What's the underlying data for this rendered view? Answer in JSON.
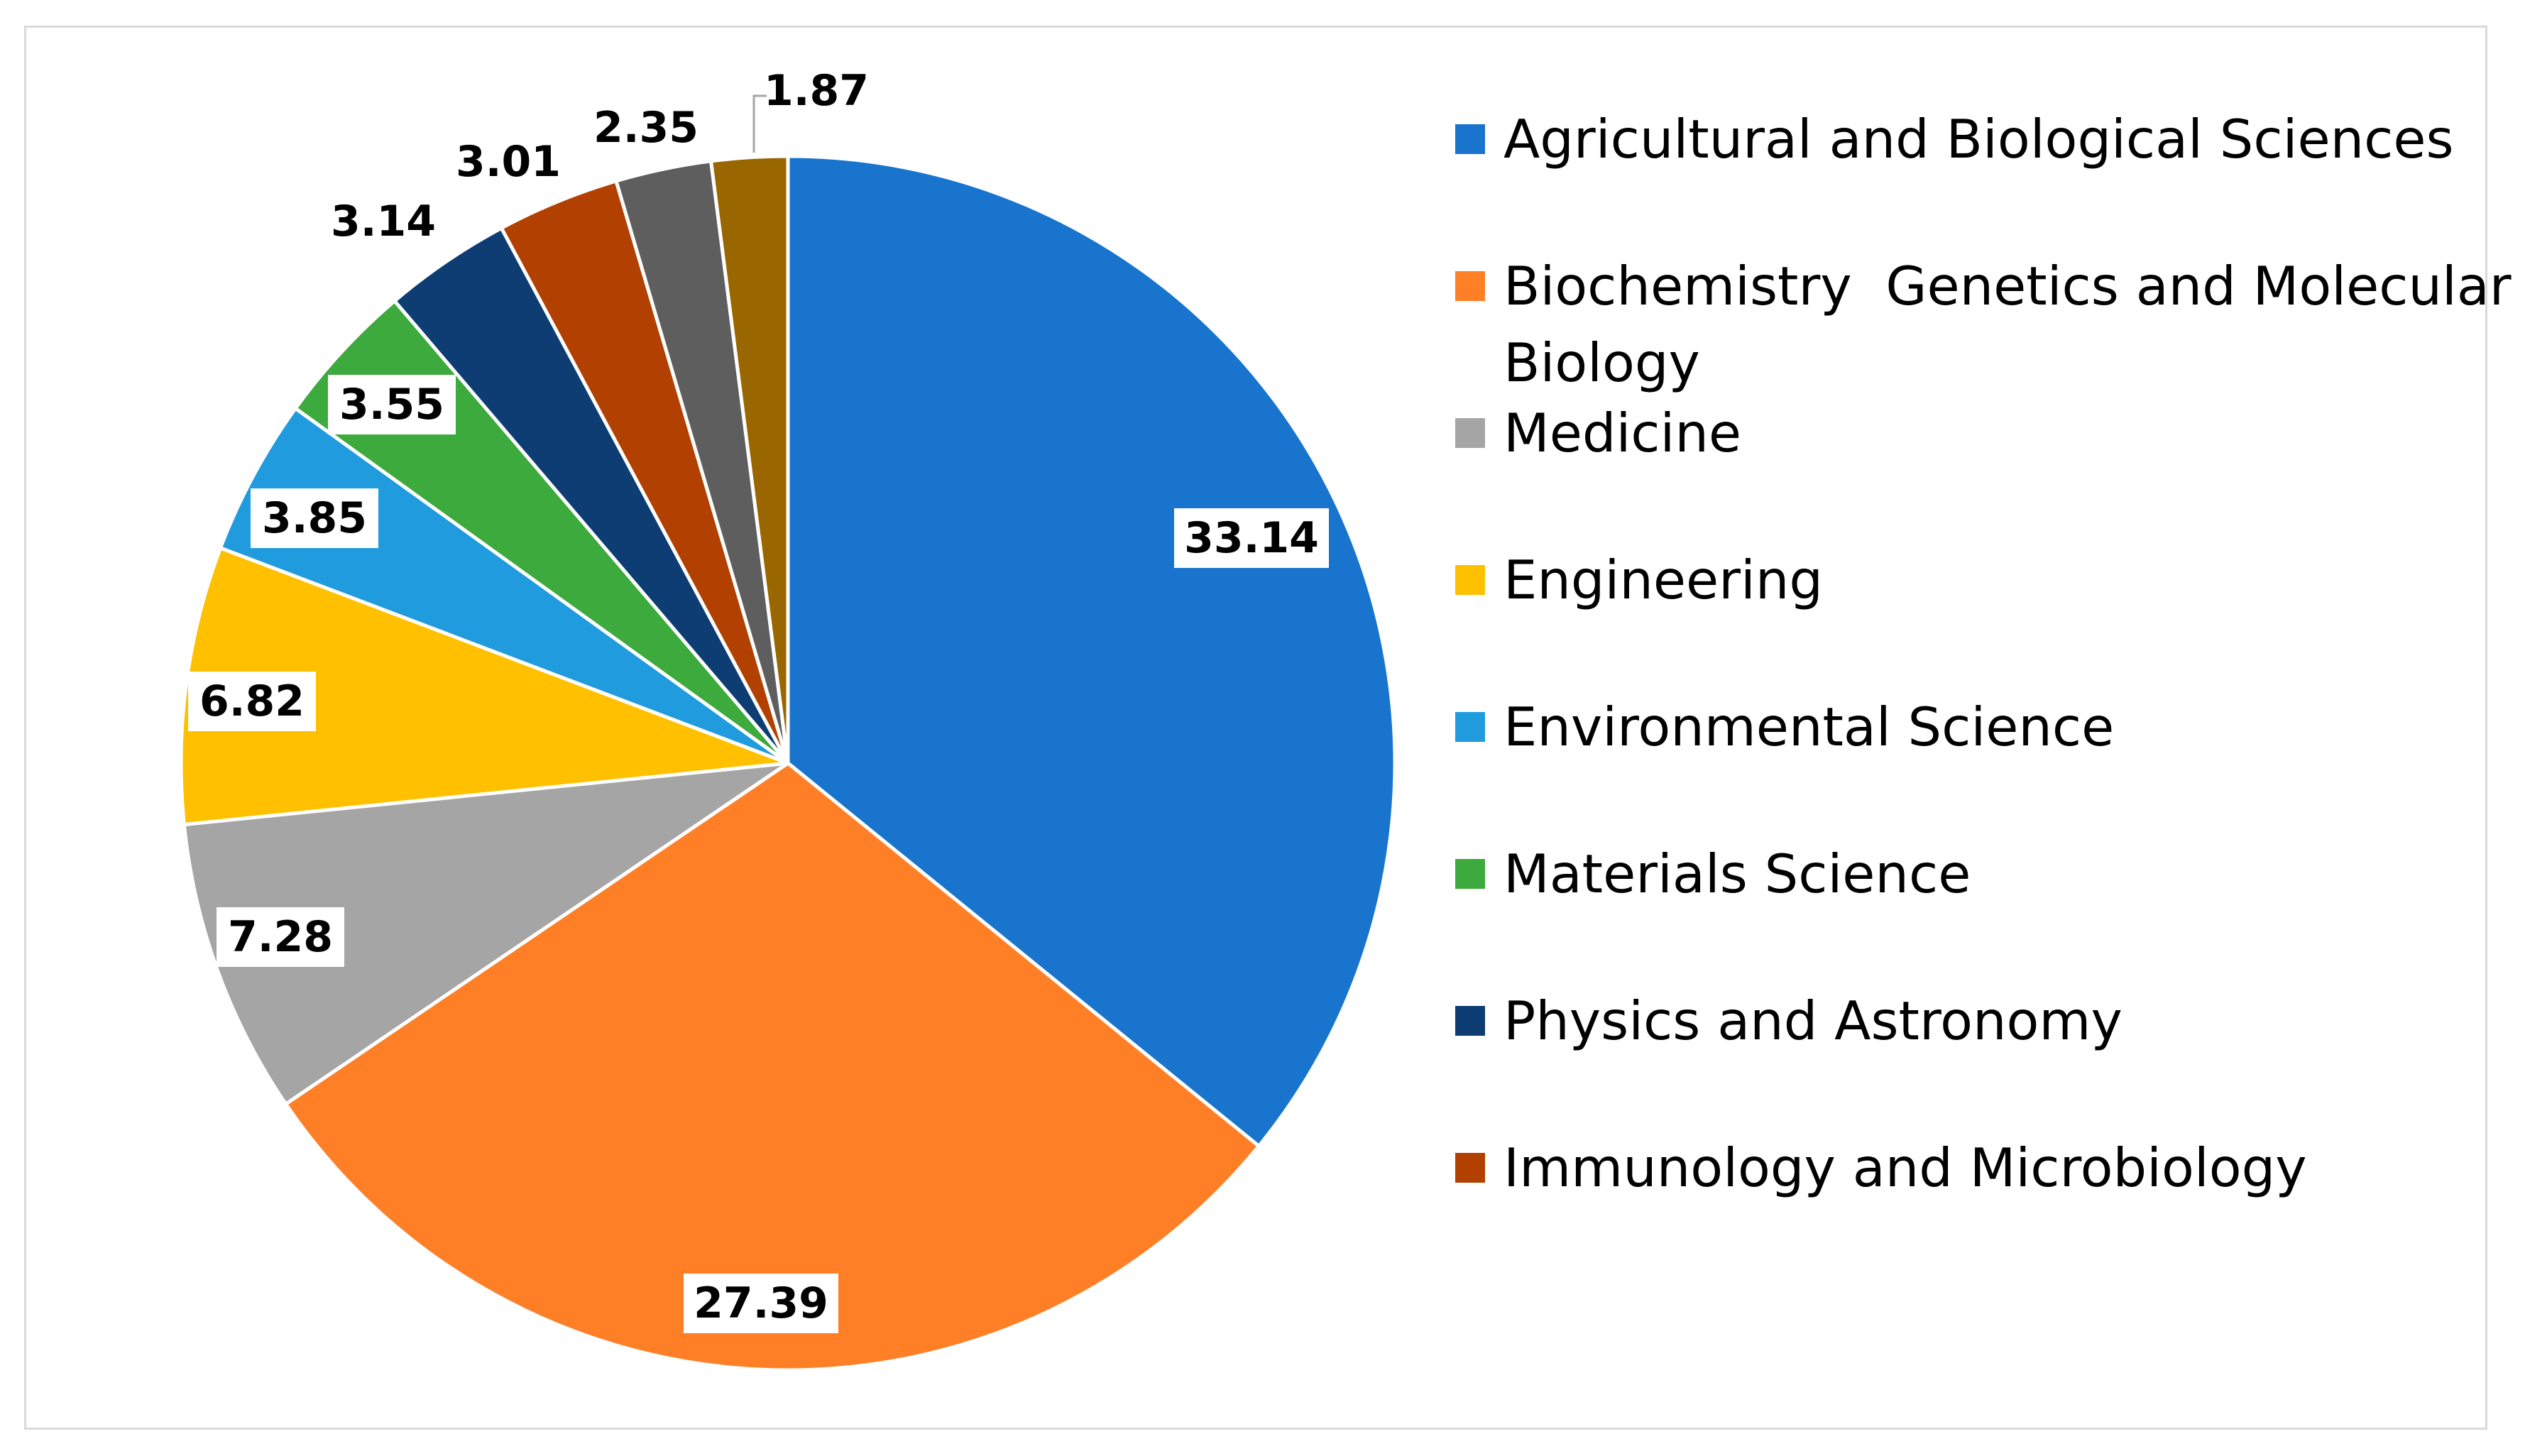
{
  "chart_data": {
    "type": "pie",
    "title": "",
    "slices": [
      {
        "label": "Agricultural and Biological Sciences",
        "value": 33.14,
        "color": "#1874CD"
      },
      {
        "label": "Biochemistry  Genetics and Molecular Biology",
        "value": 27.39,
        "color": "#FF7F27"
      },
      {
        "label": "Medicine",
        "value": 7.28,
        "color": "#A5A5A5"
      },
      {
        "label": "Engineering",
        "value": 6.82,
        "color": "#FFC000"
      },
      {
        "label": "Environmental Science",
        "value": 3.85,
        "color": "#1F9BDE"
      },
      {
        "label": "Materials Science",
        "value": 3.55,
        "color": "#3DAA3D"
      },
      {
        "label": "Physics and Astronomy",
        "value": 3.14,
        "color": "#0D3D73"
      },
      {
        "label": "Immunology and Microbiology",
        "value": 3.01,
        "color": "#B24000"
      },
      {
        "label": "",
        "value": 2.35,
        "color": "#5E5E5E"
      },
      {
        "label": "",
        "value": 1.87,
        "color": "#996600"
      }
    ],
    "legend": {
      "placement": "right",
      "entries": [
        {
          "lines": [
            "Agricultural and Biological Sciences"
          ],
          "color": "#1874CD"
        },
        {
          "lines": [
            "Biochemistry  Genetics and Molecular",
            "Biology"
          ],
          "color": "#FF7F27"
        },
        {
          "lines": [
            "Medicine"
          ],
          "color": "#A5A5A5"
        },
        {
          "lines": [
            "Engineering"
          ],
          "color": "#FFC000"
        },
        {
          "lines": [
            "Environmental Science"
          ],
          "color": "#1F9BDE"
        },
        {
          "lines": [
            "Materials Science"
          ],
          "color": "#3DAA3D"
        },
        {
          "lines": [
            "Physics and Astronomy"
          ],
          "color": "#0D3D73"
        },
        {
          "lines": [
            "Immunology and Microbiology"
          ],
          "color": "#B24000"
        }
      ]
    },
    "data_labels": [
      "33.14",
      "27.39",
      "7.28",
      "6.82",
      "3.85",
      "3.55",
      "3.14",
      "3.01",
      "2.35",
      "1.87"
    ]
  }
}
